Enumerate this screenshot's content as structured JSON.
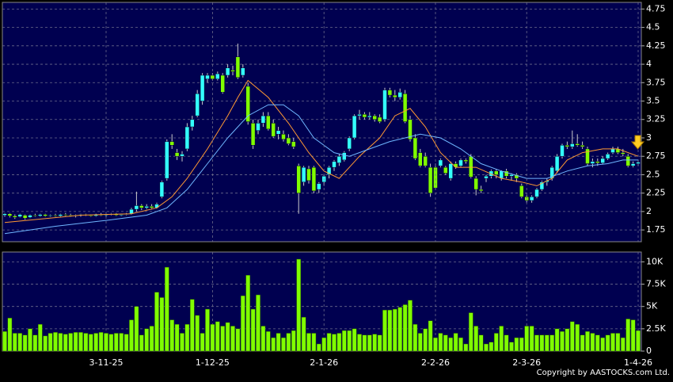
{
  "chart_data": [
    {
      "type": "candlestick",
      "up_color": "#33ffff",
      "down_color": "#80ff00",
      "ylim": [
        1.59,
        4.84
      ],
      "yticks": [
        1.75,
        2,
        2.25,
        2.5,
        2.75,
        3,
        3.25,
        3.5,
        3.75,
        4,
        4.25,
        4.5,
        4.75
      ],
      "grid": true,
      "candles": [
        [
          1.95,
          1.98,
          1.93,
          1.97
        ],
        [
          1.97,
          1.98,
          1.92,
          1.94
        ],
        [
          1.94,
          1.96,
          1.9,
          1.92
        ],
        [
          1.93,
          1.97,
          1.92,
          1.96
        ],
        [
          1.95,
          1.96,
          1.89,
          1.91
        ],
        [
          1.92,
          1.96,
          1.91,
          1.95
        ],
        [
          1.95,
          1.97,
          1.93,
          1.94
        ],
        [
          1.94,
          1.97,
          1.93,
          1.96
        ],
        [
          1.96,
          1.97,
          1.93,
          1.94
        ],
        [
          1.94,
          1.96,
          1.93,
          1.95
        ],
        [
          1.95,
          1.97,
          1.93,
          1.94
        ],
        [
          1.94,
          1.97,
          1.93,
          1.96
        ],
        [
          1.96,
          1.98,
          1.94,
          1.95
        ],
        [
          1.95,
          1.97,
          1.93,
          1.94
        ],
        [
          1.94,
          1.96,
          1.92,
          1.95
        ],
        [
          1.95,
          1.97,
          1.93,
          1.96
        ],
        [
          1.96,
          1.97,
          1.94,
          1.95
        ],
        [
          1.95,
          1.96,
          1.93,
          1.94
        ],
        [
          1.94,
          1.97,
          1.93,
          1.96
        ],
        [
          1.96,
          1.98,
          1.94,
          1.95
        ],
        [
          1.95,
          1.97,
          1.93,
          1.96
        ],
        [
          1.96,
          1.98,
          1.95,
          1.97
        ],
        [
          1.97,
          1.98,
          1.94,
          1.95
        ],
        [
          1.95,
          1.97,
          1.94,
          1.96
        ],
        [
          1.96,
          1.98,
          1.95,
          1.97
        ],
        [
          1.97,
          2.05,
          1.96,
          2.03
        ],
        [
          2.03,
          2.27,
          2.0,
          2.08
        ],
        [
          2.08,
          2.1,
          2.02,
          2.05
        ],
        [
          2.05,
          2.1,
          2.03,
          2.07
        ],
        [
          2.07,
          2.1,
          2.03,
          2.05
        ],
        [
          2.05,
          2.12,
          2.04,
          2.1
        ],
        [
          2.2,
          2.42,
          2.18,
          2.4
        ],
        [
          2.45,
          2.98,
          2.42,
          2.95
        ],
        [
          2.95,
          3.05,
          2.85,
          2.9
        ],
        [
          2.8,
          2.85,
          2.7,
          2.75
        ],
        [
          2.75,
          2.82,
          2.68,
          2.78
        ],
        [
          2.85,
          3.2,
          2.82,
          3.15
        ],
        [
          3.15,
          3.3,
          3.1,
          3.25
        ],
        [
          3.3,
          3.65,
          3.28,
          3.6
        ],
        [
          3.5,
          3.88,
          3.45,
          3.85
        ],
        [
          3.8,
          3.88,
          3.75,
          3.85
        ],
        [
          3.85,
          3.88,
          3.78,
          3.8
        ],
        [
          3.8,
          3.9,
          3.78,
          3.87
        ],
        [
          3.85,
          3.88,
          3.6,
          3.62
        ],
        [
          3.85,
          4.0,
          3.82,
          3.95
        ],
        [
          3.92,
          3.98,
          3.85,
          3.9
        ],
        [
          4.1,
          4.28,
          3.8,
          3.82
        ],
        [
          3.85,
          4.0,
          3.82,
          3.95
        ],
        [
          3.7,
          3.75,
          3.18,
          3.22
        ],
        [
          3.2,
          3.25,
          2.85,
          2.9
        ],
        [
          3.1,
          3.25,
          3.05,
          3.2
        ],
        [
          3.2,
          3.35,
          3.15,
          3.3
        ],
        [
          3.3,
          3.35,
          3.1,
          3.12
        ],
        [
          3.2,
          3.25,
          3.0,
          3.02
        ],
        [
          3.05,
          3.15,
          2.98,
          3.1
        ],
        [
          3.05,
          3.1,
          2.95,
          2.98
        ],
        [
          3.0,
          3.05,
          2.9,
          2.92
        ],
        [
          2.95,
          3.0,
          2.85,
          2.88
        ],
        [
          2.62,
          2.65,
          1.97,
          2.25
        ],
        [
          2.4,
          2.62,
          2.35,
          2.6
        ],
        [
          2.58,
          2.62,
          2.38,
          2.42
        ],
        [
          2.6,
          2.62,
          2.25,
          2.28
        ],
        [
          2.3,
          2.4,
          2.25,
          2.38
        ],
        [
          2.4,
          2.5,
          2.35,
          2.48
        ],
        [
          2.5,
          2.62,
          2.45,
          2.6
        ],
        [
          2.6,
          2.7,
          2.55,
          2.68
        ],
        [
          2.66,
          2.78,
          2.62,
          2.75
        ],
        [
          2.7,
          2.82,
          2.68,
          2.8
        ],
        [
          2.85,
          3.02,
          2.82,
          3.0
        ],
        [
          3.0,
          3.32,
          2.98,
          3.3
        ],
        [
          3.3,
          3.38,
          3.25,
          3.32
        ],
        [
          3.32,
          3.35,
          3.25,
          3.28
        ],
        [
          3.28,
          3.35,
          3.25,
          3.3
        ],
        [
          3.3,
          3.32,
          3.22,
          3.25
        ],
        [
          3.28,
          3.32,
          3.2,
          3.22
        ],
        [
          3.25,
          3.68,
          3.22,
          3.65
        ],
        [
          3.65,
          3.68,
          3.55,
          3.58
        ],
        [
          3.58,
          3.65,
          3.5,
          3.55
        ],
        [
          3.55,
          3.67,
          3.52,
          3.62
        ],
        [
          3.6,
          3.65,
          3.2,
          3.22
        ],
        [
          3.25,
          3.3,
          2.95,
          2.98
        ],
        [
          3.0,
          3.05,
          2.7,
          2.72
        ],
        [
          2.8,
          2.85,
          2.6,
          2.62
        ],
        [
          2.75,
          2.8,
          2.6,
          2.62
        ],
        [
          2.6,
          2.65,
          2.2,
          2.25
        ],
        [
          2.6,
          2.65,
          2.3,
          2.32
        ],
        [
          2.62,
          2.72,
          2.6,
          2.7
        ],
        [
          2.6,
          2.62,
          2.5,
          2.52
        ],
        [
          2.45,
          2.68,
          2.42,
          2.65
        ],
        [
          2.65,
          2.68,
          2.58,
          2.6
        ],
        [
          2.62,
          2.72,
          2.6,
          2.7
        ],
        [
          2.7,
          2.72,
          2.65,
          2.68
        ],
        [
          2.75,
          2.78,
          2.45,
          2.47
        ],
        [
          2.45,
          2.48,
          2.22,
          2.3
        ],
        [
          2.3,
          2.35,
          2.25,
          2.28
        ],
        [
          2.45,
          2.5,
          2.4,
          2.48
        ],
        [
          2.48,
          2.57,
          2.45,
          2.55
        ],
        [
          2.55,
          2.58,
          2.45,
          2.5
        ],
        [
          2.45,
          2.56,
          2.42,
          2.55
        ],
        [
          2.55,
          2.58,
          2.45,
          2.48
        ],
        [
          2.48,
          2.52,
          2.42,
          2.5
        ],
        [
          2.5,
          2.52,
          2.4,
          2.45
        ],
        [
          2.35,
          2.38,
          2.18,
          2.2
        ],
        [
          2.2,
          2.22,
          2.12,
          2.15
        ],
        [
          2.15,
          2.22,
          2.12,
          2.2
        ],
        [
          2.2,
          2.32,
          2.18,
          2.3
        ],
        [
          2.3,
          2.42,
          2.28,
          2.4
        ],
        [
          2.4,
          2.45,
          2.35,
          2.42
        ],
        [
          2.45,
          2.62,
          2.42,
          2.6
        ],
        [
          2.55,
          2.78,
          2.52,
          2.75
        ],
        [
          2.75,
          2.92,
          2.72,
          2.9
        ],
        [
          2.9,
          2.95,
          2.85,
          2.88
        ],
        [
          2.88,
          3.1,
          2.85,
          2.92
        ],
        [
          2.92,
          3.05,
          2.88,
          2.9
        ],
        [
          2.9,
          2.95,
          2.85,
          2.88
        ],
        [
          2.85,
          2.88,
          2.62,
          2.65
        ],
        [
          2.65,
          2.72,
          2.6,
          2.68
        ],
        [
          2.68,
          2.72,
          2.62,
          2.66
        ],
        [
          2.66,
          2.75,
          2.64,
          2.72
        ],
        [
          2.72,
          2.8,
          2.7,
          2.78
        ],
        [
          2.8,
          2.88,
          2.78,
          2.85
        ],
        [
          2.85,
          2.88,
          2.78,
          2.8
        ],
        [
          2.8,
          2.85,
          2.75,
          2.78
        ],
        [
          2.75,
          2.78,
          2.6,
          2.62
        ],
        [
          2.62,
          2.68,
          2.6,
          2.65
        ],
        [
          2.65,
          2.7,
          2.62,
          2.67
        ]
      ],
      "lines": [
        {
          "color": "#ff9933",
          "x": [
            0,
            15,
            25,
            30,
            33,
            36,
            40,
            44,
            46,
            48,
            52,
            56,
            60,
            63,
            66,
            70,
            74,
            77,
            80,
            83,
            86,
            89,
            93,
            98,
            102,
            105,
            108,
            111,
            114,
            118,
            121,
            125
          ],
          "values": [
            1.85,
            1.95,
            1.97,
            2.05,
            2.2,
            2.45,
            2.85,
            3.3,
            3.55,
            3.78,
            3.55,
            3.2,
            2.8,
            2.55,
            2.45,
            2.75,
            3.0,
            3.3,
            3.4,
            3.15,
            2.8,
            2.6,
            2.6,
            2.45,
            2.4,
            2.35,
            2.45,
            2.7,
            2.8,
            2.85,
            2.85,
            2.75
          ]
        },
        {
          "color": "#6fb7ff",
          "x": [
            0,
            10,
            20,
            28,
            32,
            36,
            40,
            44,
            48,
            52,
            55,
            58,
            61,
            65,
            68,
            72,
            76,
            79,
            82,
            86,
            90,
            94,
            98,
            103,
            107,
            111,
            115,
            119,
            122,
            125
          ],
          "values": [
            1.7,
            1.8,
            1.88,
            1.95,
            2.05,
            2.3,
            2.65,
            3.0,
            3.3,
            3.45,
            3.45,
            3.3,
            3.0,
            2.8,
            2.75,
            2.85,
            2.95,
            3.0,
            3.05,
            3.0,
            2.85,
            2.65,
            2.55,
            2.45,
            2.45,
            2.55,
            2.62,
            2.65,
            2.7,
            2.7
          ]
        }
      ]
    },
    {
      "type": "bar",
      "color": "#80ff00",
      "ylim": [
        0,
        11100
      ],
      "yticks": [
        0,
        {
          "value": 2500,
          "label": "2.5K"
        },
        {
          "value": 5000,
          "label": "5K"
        },
        {
          "value": 7500,
          "label": "7.5K"
        },
        {
          "value": 10000,
          "label": "10K"
        }
      ],
      "grid": true,
      "categories": [
        null,
        null,
        null,
        null,
        null,
        null,
        null,
        null,
        null,
        null,
        null,
        null,
        null,
        null,
        null,
        null,
        null,
        null,
        null,
        null,
        "3-11-25",
        null,
        null,
        null,
        null,
        null,
        null,
        null,
        null,
        null,
        null,
        null,
        null,
        null,
        null,
        null,
        null,
        null,
        null,
        null,
        null,
        "1-12-25",
        null,
        null,
        null,
        null,
        null,
        null,
        null,
        null,
        null,
        null,
        null,
        null,
        null,
        null,
        null,
        null,
        null,
        null,
        null,
        null,
        null,
        "2-1-26",
        null,
        null,
        null,
        null,
        null,
        null,
        null,
        null,
        null,
        null,
        null,
        null,
        null,
        null,
        null,
        null,
        null,
        null,
        null,
        null,
        null,
        "2-2-26",
        null,
        null,
        null,
        null,
        null,
        null,
        null,
        null,
        null,
        null,
        null,
        null,
        null,
        null,
        null,
        null,
        null,
        "2-3-26",
        null,
        null,
        null,
        null,
        null,
        null,
        null,
        null,
        null,
        null,
        null,
        null,
        null,
        null,
        null,
        null,
        null,
        null,
        null,
        null,
        null,
        "1-4-26"
      ],
      "values": [
        2200,
        3700,
        2000,
        2000,
        1800,
        2500,
        1800,
        3000,
        1700,
        2000,
        2100,
        2000,
        1900,
        2000,
        2100,
        2100,
        2000,
        1900,
        2000,
        2100,
        2000,
        1900,
        2000,
        2000,
        1900,
        3500,
        5000,
        1800,
        2500,
        2800,
        6600,
        6000,
        9400,
        3500,
        3000,
        2000,
        3000,
        5800,
        4000,
        2000,
        4700,
        3000,
        3300,
        2800,
        3200,
        2800,
        2500,
        6200,
        8500,
        4700,
        6300,
        2800,
        2200,
        1500,
        2000,
        1500,
        2000,
        2300,
        10300,
        3800,
        2000,
        2000,
        800,
        1500,
        2000,
        1900,
        2000,
        2300,
        2300,
        2500,
        1900,
        1800,
        1800,
        1900,
        1800,
        4600,
        4600,
        4700,
        4900,
        5200,
        5700,
        3000,
        2000,
        2500,
        3400,
        1500,
        2000,
        1800,
        1500,
        2000,
        1500,
        800,
        4300,
        2800,
        1800,
        800,
        1000,
        2000,
        2800,
        1800,
        1000,
        1500,
        1500,
        2800,
        2800,
        1800,
        1800,
        1800,
        1800,
        2500,
        2200,
        2500,
        3300,
        3000,
        1800,
        2200,
        2000,
        1800,
        1500,
        1800,
        2000,
        2000,
        1500,
        3600,
        3500,
        2300
      ]
    },
    {
      "copyright": "Copyright by AASTOCKS.com Ltd."
    }
  ]
}
